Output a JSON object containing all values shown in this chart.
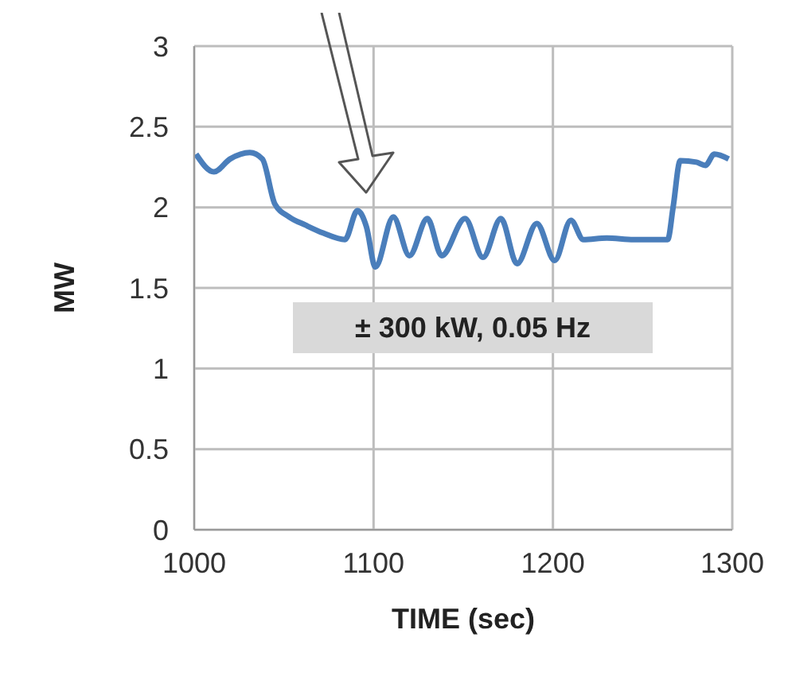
{
  "chart_data": {
    "type": "line",
    "xlabel": "TIME (sec)",
    "ylabel": "MW",
    "x": [
      1001,
      1011,
      1020,
      1031,
      1038,
      1045,
      1053,
      1062,
      1072,
      1084,
      1091,
      1096,
      1101,
      1111,
      1120,
      1130,
      1138,
      1151,
      1161,
      1171,
      1180,
      1191,
      1201,
      1210,
      1217,
      1230,
      1245,
      1258,
      1264,
      1267,
      1271,
      1280,
      1285,
      1290,
      1298
    ],
    "series": [
      {
        "color": "#4a7ebb",
        "values": [
          2.33,
          2.22,
          2.3,
          2.34,
          2.3,
          2.02,
          1.94,
          1.89,
          1.84,
          1.8,
          1.98,
          1.88,
          1.63,
          1.94,
          1.7,
          1.93,
          1.7,
          1.93,
          1.69,
          1.93,
          1.65,
          1.9,
          1.67,
          1.92,
          1.8,
          1.81,
          1.8,
          1.8,
          1.8,
          2.0,
          2.29,
          2.28,
          2.26,
          2.33,
          2.3
        ]
      }
    ],
    "annotations": [
      "± 300 kW, 0.05 Hz"
    ],
    "xlim": [
      1000,
      1300
    ],
    "xticks": [
      1000,
      1100,
      1200,
      1300
    ],
    "ylim": [
      0,
      3
    ],
    "yticks": [
      0,
      0.5,
      1,
      1.5,
      2,
      2.5,
      3
    ],
    "grid": true,
    "legend": false,
    "marker": "none",
    "line_style": "solid"
  }
}
